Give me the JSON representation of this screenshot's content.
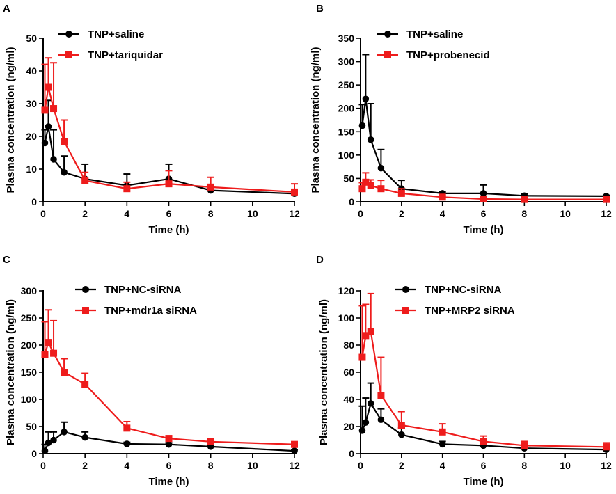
{
  "chart_data": [
    {
      "panel": "A",
      "type": "line",
      "xlabel": "Time (h)",
      "ylabel": "Plasma concentration (ng/ml)",
      "xlim": [
        0,
        12
      ],
      "ylim": [
        0,
        50
      ],
      "xticks": [
        0,
        2,
        4,
        6,
        8,
        10,
        12
      ],
      "yticks": [
        0,
        10,
        20,
        30,
        40,
        50
      ],
      "series": [
        {
          "name": "TNP+saline",
          "color": "#000000",
          "marker": "circle",
          "x": [
            0.083,
            0.25,
            0.5,
            1,
            2,
            4,
            6,
            8,
            12
          ],
          "y": [
            18,
            23,
            13,
            9,
            7,
            5,
            7,
            3.5,
            2.5
          ],
          "err": [
            4,
            8,
            9,
            5,
            4.5,
            3.5,
            4.5,
            1.5,
            1
          ]
        },
        {
          "name": "TNP+tariquidar",
          "color": "#ee1c1c",
          "marker": "square",
          "x": [
            0.083,
            0.25,
            0.5,
            1,
            2,
            4,
            6,
            8,
            12
          ],
          "y": [
            28,
            35,
            28.5,
            18.5,
            6.5,
            4,
            5.5,
            4.5,
            3
          ],
          "err": [
            14,
            9,
            14,
            6.5,
            2.5,
            2,
            4,
            3,
            2.5
          ]
        }
      ]
    },
    {
      "panel": "B",
      "type": "line",
      "xlabel": "Time (h)",
      "ylabel": "Plasma concentration (ng/ml)",
      "xlim": [
        0,
        12
      ],
      "ylim": [
        0,
        350
      ],
      "xticks": [
        0,
        2,
        4,
        6,
        8,
        10,
        12
      ],
      "yticks": [
        0,
        50,
        100,
        150,
        200,
        250,
        300,
        350
      ],
      "series": [
        {
          "name": "TNP+saline",
          "color": "#000000",
          "marker": "circle",
          "x": [
            0.083,
            0.25,
            0.5,
            1,
            2,
            4,
            6,
            8,
            12
          ],
          "y": [
            163,
            220,
            133,
            72,
            28,
            18,
            18,
            13,
            12
          ],
          "err": [
            45,
            95,
            77,
            40,
            18,
            3,
            18,
            4,
            2
          ]
        },
        {
          "name": "TNP+probenecid",
          "color": "#ee1c1c",
          "marker": "square",
          "x": [
            0.083,
            0.25,
            0.5,
            1,
            2,
            4,
            6,
            8,
            12
          ],
          "y": [
            28,
            42,
            35,
            28,
            18,
            10,
            6,
            5,
            5
          ],
          "err": [
            13,
            20,
            12,
            18,
            10,
            3,
            3,
            2,
            2
          ]
        }
      ]
    },
    {
      "panel": "C",
      "type": "line",
      "xlabel": "Time (h)",
      "ylabel": "Plasma concentration (ng/ml)",
      "xlim": [
        0,
        12
      ],
      "ylim": [
        0,
        300
      ],
      "xticks": [
        0,
        2,
        4,
        6,
        8,
        10,
        12
      ],
      "yticks": [
        0,
        50,
        100,
        150,
        200,
        250,
        300
      ],
      "series": [
        {
          "name": "TNP+NC-siRNA",
          "color": "#000000",
          "marker": "circle",
          "x": [
            0.083,
            0.25,
            0.5,
            1,
            2,
            4,
            6,
            8,
            12
          ],
          "y": [
            5,
            20,
            25,
            40,
            30,
            18,
            17,
            13,
            5
          ],
          "err": [
            12,
            20,
            15,
            18,
            10,
            3,
            3,
            3,
            2
          ]
        },
        {
          "name": "TNP+mdr1a siRNA",
          "color": "#ee1c1c",
          "marker": "square",
          "x": [
            0.083,
            0.25,
            0.5,
            1,
            2,
            4,
            6,
            8,
            12
          ],
          "y": [
            183,
            205,
            185,
            150,
            128,
            47,
            28,
            22,
            17
          ],
          "err": [
            60,
            60,
            60,
            25,
            20,
            12,
            5,
            5,
            5
          ]
        }
      ]
    },
    {
      "panel": "D",
      "type": "line",
      "xlabel": "Time (h)",
      "ylabel": "Plasma concentration (ng/ml)",
      "xlim": [
        0,
        12
      ],
      "ylim": [
        0,
        120
      ],
      "xticks": [
        0,
        2,
        4,
        6,
        8,
        10,
        12
      ],
      "yticks": [
        0,
        20,
        40,
        60,
        80,
        100,
        120
      ],
      "series": [
        {
          "name": "TNP+NC-siRNA",
          "color": "#000000",
          "marker": "circle",
          "x": [
            0.083,
            0.25,
            0.5,
            1,
            2,
            4,
            6,
            8,
            12
          ],
          "y": [
            17,
            23,
            37,
            25,
            14,
            7,
            6,
            4,
            3
          ],
          "err": [
            18,
            18,
            15,
            8,
            5,
            2,
            2,
            1,
            1
          ]
        },
        {
          "name": "TNP+MRP2 siRNA",
          "color": "#ee1c1c",
          "marker": "square",
          "x": [
            0.083,
            0.25,
            0.5,
            1,
            2,
            4,
            6,
            8,
            12
          ],
          "y": [
            71,
            87,
            90,
            43,
            21,
            16,
            9,
            6,
            5
          ],
          "err": [
            38,
            23,
            28,
            28,
            10,
            6,
            4,
            3,
            3
          ]
        }
      ]
    }
  ]
}
